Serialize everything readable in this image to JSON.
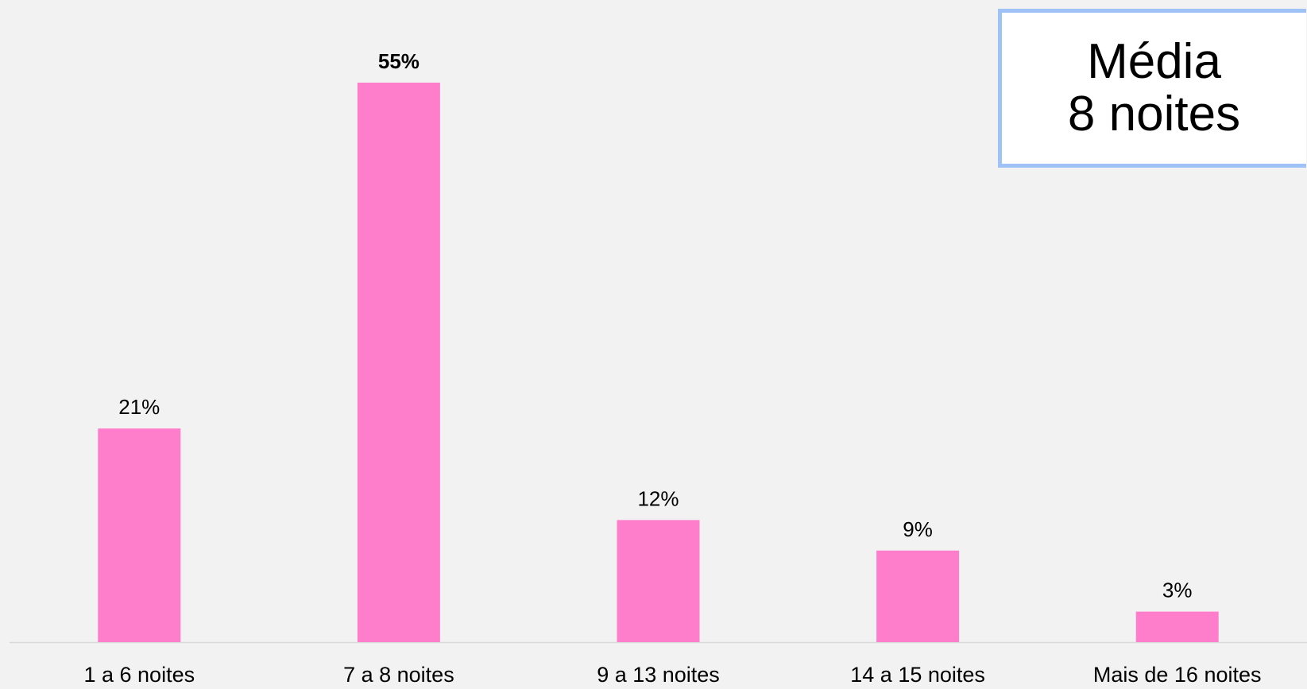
{
  "colors": {
    "background": "#f2f2f2",
    "bar": "#ff7ecb",
    "axis": "#d9d9d9",
    "text": "#000000",
    "box_border": "#9fc3f7"
  },
  "summary_box": {
    "line1": "Média",
    "line2": "8 noites"
  },
  "chart_data": {
    "type": "bar",
    "categories": [
      "1 a 6 noites",
      "7 a 8 noites",
      "9 a 13 noites",
      "14 a 15 noites",
      "Mais de 16 noites"
    ],
    "values": [
      21,
      55,
      12,
      9,
      3
    ],
    "data_labels": [
      "21%",
      "55%",
      "12%",
      "9%",
      "3%"
    ],
    "highlighted_index": 1,
    "ylim": [
      0,
      55
    ],
    "grid": false,
    "legend": "none"
  }
}
